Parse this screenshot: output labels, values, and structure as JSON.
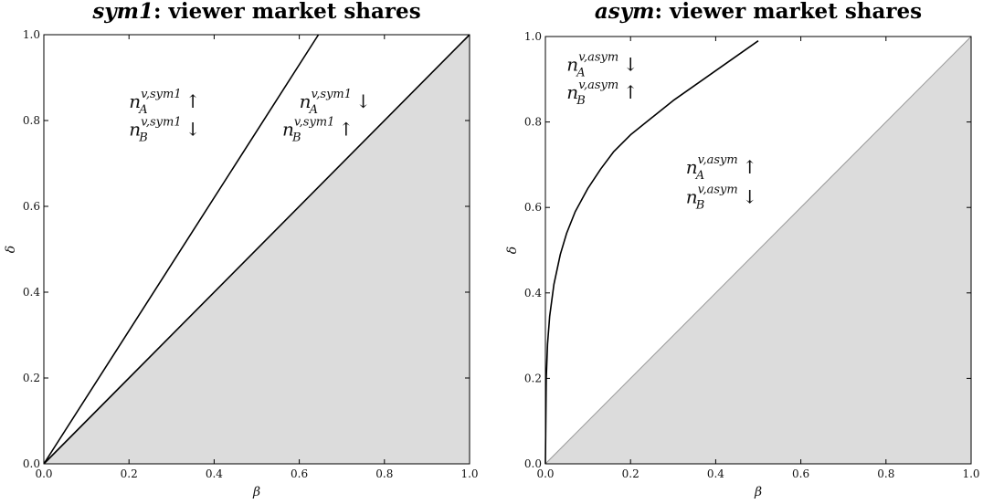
{
  "chart_data": [
    {
      "type": "line",
      "title_italic": "sym1",
      "title_rest": ": viewer market shares",
      "xlabel": "β",
      "ylabel": "δ",
      "xlim": [
        0,
        1
      ],
      "ylim": [
        0,
        1
      ],
      "xticks": [
        "0.0",
        "0.2",
        "0.4",
        "0.6",
        "0.8",
        "1.0"
      ],
      "yticks": [
        "0.0",
        "0.2",
        "0.4",
        "0.6",
        "0.8",
        "1.0"
      ],
      "grid": false,
      "shaded_region": {
        "fill": "#dcdcdc",
        "below_curve": "delta_equals_beta"
      },
      "series": [
        {
          "x": [
            0,
            0.645
          ],
          "y": [
            0,
            1.0
          ],
          "color": "#000000"
        },
        {
          "x": [
            0,
            1.0
          ],
          "y": [
            0,
            1.0
          ],
          "color": "#000000"
        }
      ],
      "annotations": [
        {
          "x": 0.2,
          "y": 0.83,
          "base": "n",
          "sub": "A",
          "sup": "v,sym1",
          "arrow": "↑"
        },
        {
          "x": 0.2,
          "y": 0.765,
          "base": "n",
          "sub": "B",
          "sup": "v,sym1",
          "arrow": "↓"
        },
        {
          "x": 0.6,
          "y": 0.83,
          "base": "n",
          "sub": "A",
          "sup": "v,sym1",
          "arrow": "↓"
        },
        {
          "x": 0.56,
          "y": 0.765,
          "base": "n",
          "sub": "B",
          "sup": "v,sym1",
          "arrow": "↑"
        }
      ]
    },
    {
      "type": "line",
      "title_italic": "asym",
      "title_rest": ": viewer market shares",
      "xlabel": "β",
      "ylabel": "δ",
      "xlim": [
        0,
        1
      ],
      "ylim": [
        0,
        1
      ],
      "xticks": [
        "0.0",
        "0.2",
        "0.4",
        "0.6",
        "0.8",
        "1.0"
      ],
      "yticks": [
        "0.0",
        "0.2",
        "0.4",
        "0.6",
        "0.8",
        "1.0"
      ],
      "grid": false,
      "shaded_region": {
        "fill": "#dcdcdc",
        "below_curve": "delta_equals_beta",
        "boundary_color": "#999999"
      },
      "series": [
        {
          "x": [
            0,
            0.002,
            0.005,
            0.01,
            0.02,
            0.035,
            0.05,
            0.07,
            0.1,
            0.13,
            0.16,
            0.2,
            0.25,
            0.3,
            0.35,
            0.4,
            0.45,
            0.5
          ],
          "y": [
            0,
            0.2,
            0.28,
            0.345,
            0.42,
            0.49,
            0.54,
            0.59,
            0.645,
            0.69,
            0.73,
            0.77,
            0.81,
            0.85,
            0.885,
            0.92,
            0.955,
            0.99
          ],
          "color": "#000000"
        }
      ],
      "annotations": [
        {
          "x": 0.05,
          "y": 0.92,
          "base": "n",
          "sub": "A",
          "sup": "v,asym",
          "arrow": "↓"
        },
        {
          "x": 0.05,
          "y": 0.855,
          "base": "n",
          "sub": "B",
          "sup": "v,asym",
          "arrow": "↑"
        },
        {
          "x": 0.33,
          "y": 0.68,
          "base": "n",
          "sub": "A",
          "sup": "v,asym",
          "arrow": "↑"
        },
        {
          "x": 0.33,
          "y": 0.61,
          "base": "n",
          "sub": "B",
          "sup": "v,asym",
          "arrow": "↓"
        }
      ]
    }
  ]
}
